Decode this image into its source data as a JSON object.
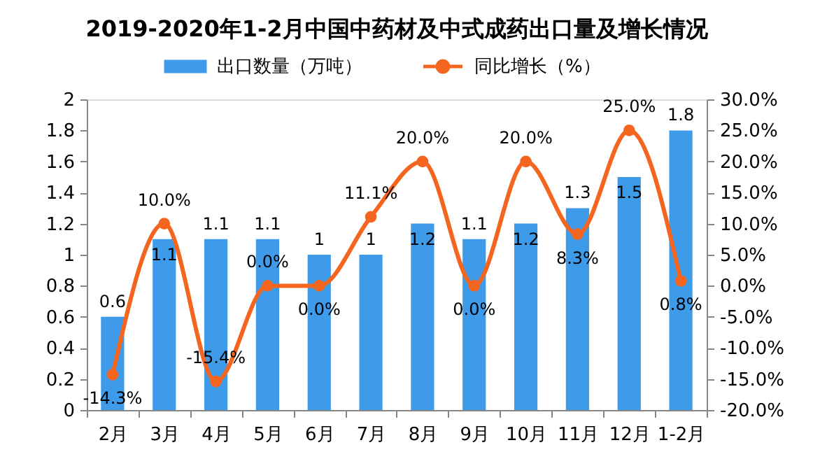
{
  "chart_data": {
    "type": "bar",
    "title": "2019-2020年1-2月中国中药材及中式成药出口量及增长情况",
    "categories": [
      "2月",
      "3月",
      "4月",
      "5月",
      "6月",
      "7月",
      "8月",
      "9月",
      "10月",
      "11月",
      "12月",
      "1-2月"
    ],
    "series": [
      {
        "name": "出口数量（万吨）",
        "color": "#3d9be9",
        "values": [
          0.6,
          1.1,
          1.1,
          1.1,
          1,
          1,
          1.2,
          1.1,
          1.2,
          1.3,
          1.5,
          1.8
        ],
        "value_labels": [
          "0.6",
          "1.1",
          "1.1",
          "1.1",
          "1",
          "1",
          "1.2",
          "1.1",
          "1.2",
          "1.3",
          "1.5",
          "1.8"
        ]
      },
      {
        "name": "同比增长（%）",
        "type": "line",
        "axis": "y2",
        "color": "#f4661f",
        "marker": "circle",
        "line_style": "solid",
        "values": [
          -14.3,
          10.0,
          -15.4,
          0.0,
          0.0,
          11.1,
          20.0,
          0.0,
          20.0,
          8.3,
          25.0,
          0.8
        ],
        "value_labels": [
          "-14.3%",
          "10.0%",
          "-15.4%",
          "0.0%",
          "0.0%",
          "11.1%",
          "20.0%",
          "0.0%",
          "20.0%",
          "8.3%",
          "25.0%",
          "0.8%"
        ]
      }
    ],
    "ylim": [
      0,
      2
    ],
    "yticks": [
      0,
      0.2,
      0.4,
      0.6,
      0.8,
      1,
      1.2,
      1.4,
      1.6,
      1.8,
      2
    ],
    "y2lim": [
      -20,
      30
    ],
    "y2ticks": [
      {
        "value": -20,
        "label": "-20.0%"
      },
      {
        "value": -15,
        "label": "-15.0%"
      },
      {
        "value": -10,
        "label": "-10.0%"
      },
      {
        "value": -5,
        "label": "-5.0%"
      },
      {
        "value": 0,
        "label": "0.0%"
      },
      {
        "value": 5,
        "label": "5.0%"
      },
      {
        "value": 10,
        "label": "10.0%"
      },
      {
        "value": 15,
        "label": "15.0%"
      },
      {
        "value": 20,
        "label": "20.0%"
      },
      {
        "value": 25,
        "label": "25.0%"
      },
      {
        "value": 30,
        "label": "30.0%"
      }
    ],
    "legend": "top",
    "grid": false
  }
}
